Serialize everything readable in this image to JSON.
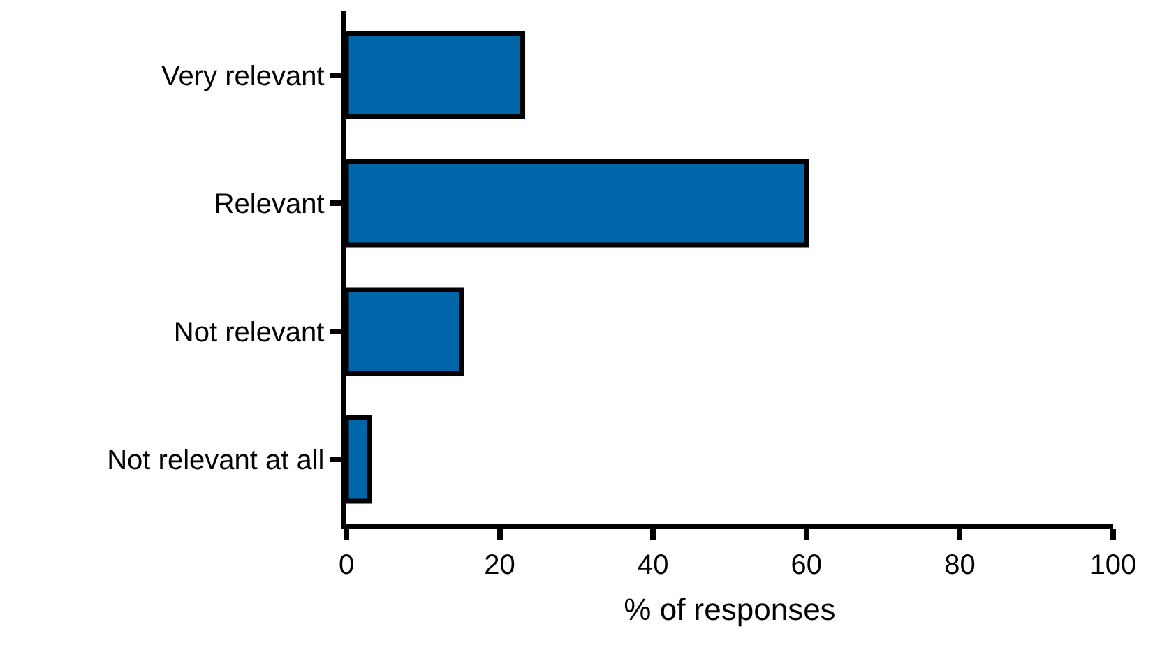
{
  "chart_data": {
    "type": "bar",
    "orientation": "horizontal",
    "xlabel": "% of responses",
    "categories": [
      "Very relevant",
      "Relevant",
      "Not relevant",
      "Not relevant at all"
    ],
    "values": [
      23,
      60,
      15,
      3
    ],
    "color": "#0066aa",
    "xlim": [
      0,
      100
    ],
    "xticks": [
      0,
      20,
      40,
      60,
      80,
      100
    ]
  }
}
